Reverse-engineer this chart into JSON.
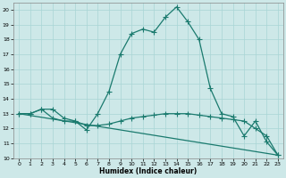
{
  "xlabel": "Humidex (Indice chaleur)",
  "xlim": [
    -0.5,
    23.5
  ],
  "ylim": [
    10,
    20.5
  ],
  "yticks": [
    10,
    11,
    12,
    13,
    14,
    15,
    16,
    17,
    18,
    19,
    20
  ],
  "xticks": [
    0,
    1,
    2,
    3,
    4,
    5,
    6,
    7,
    8,
    9,
    10,
    11,
    12,
    13,
    14,
    15,
    16,
    17,
    18,
    19,
    20,
    21,
    22,
    23
  ],
  "bg_color": "#cde8e8",
  "line_color": "#1a7a6e",
  "series": [
    {
      "x": [
        0,
        1,
        2,
        3,
        4,
        5,
        6,
        7,
        8,
        9,
        10,
        11,
        12,
        13,
        14,
        15,
        16,
        17,
        18,
        19,
        20,
        21,
        22,
        23
      ],
      "y": [
        13.0,
        13.0,
        13.3,
        13.3,
        12.7,
        12.5,
        11.9,
        13.0,
        14.5,
        17.0,
        18.4,
        18.7,
        18.5,
        19.5,
        20.2,
        19.2,
        18.0,
        14.7,
        13.0,
        12.8,
        11.5,
        12.5,
        11.1,
        10.2
      ],
      "marker": true
    },
    {
      "x": [
        0,
        1,
        2,
        3,
        4,
        5,
        6,
        7,
        8,
        9,
        10,
        11,
        12,
        13,
        14,
        15,
        16,
        17,
        18,
        19,
        20,
        21,
        22,
        23
      ],
      "y": [
        13.0,
        13.0,
        13.3,
        12.7,
        12.5,
        12.5,
        12.2,
        12.2,
        12.3,
        12.5,
        12.7,
        12.8,
        12.9,
        13.0,
        13.0,
        13.0,
        12.9,
        12.8,
        12.7,
        12.6,
        12.5,
        12.0,
        11.5,
        10.2
      ],
      "marker": true
    },
    {
      "x": [
        0,
        23
      ],
      "y": [
        13.0,
        10.2
      ],
      "marker": false
    }
  ],
  "markersize": 2.0,
  "linewidth": 0.9
}
